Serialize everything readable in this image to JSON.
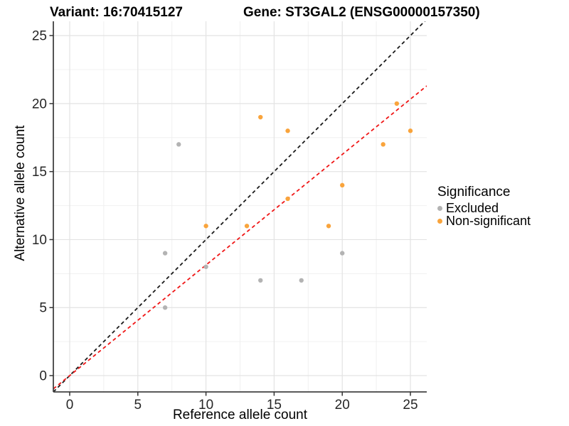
{
  "titles": {
    "variant": "Variant: 16:70415127",
    "gene": "Gene: ST3GAL2 (ENSG00000157350)"
  },
  "chart_data": {
    "type": "scatter",
    "xlabel": "Reference allele count",
    "ylabel": "Alternative allele count",
    "xlim": [
      -1.2,
      26.2
    ],
    "ylim": [
      -1.2,
      26.05
    ],
    "x_ticks": [
      0,
      5,
      10,
      15,
      20,
      25
    ],
    "y_ticks": [
      0,
      5,
      10,
      15,
      20,
      25
    ],
    "x_minor_ticks": [
      2.5,
      7.5,
      12.5,
      17.5,
      22.5
    ],
    "y_minor_ticks": [
      2.5,
      7.5,
      12.5,
      17.5,
      22.5
    ],
    "grid": "major+minor",
    "legend": {
      "title": "Significance",
      "position": "right",
      "items": [
        {
          "label": "Excluded",
          "color": "#B3B3B3"
        },
        {
          "label": "Non-significant",
          "color": "#F9A43C"
        }
      ]
    },
    "series": [
      {
        "name": "Excluded",
        "color": "#B3B3B3",
        "points": [
          [
            7,
            5
          ],
          [
            7,
            9
          ],
          [
            8,
            17
          ],
          [
            10,
            8
          ],
          [
            14,
            7
          ],
          [
            17,
            7
          ],
          [
            20,
            9
          ]
        ]
      },
      {
        "name": "Non-significant",
        "color": "#F9A43C",
        "points": [
          [
            10,
            11
          ],
          [
            13,
            11
          ],
          [
            14,
            19
          ],
          [
            16,
            13
          ],
          [
            16,
            18
          ],
          [
            19,
            11
          ],
          [
            20,
            14
          ],
          [
            23,
            17
          ],
          [
            24,
            20
          ],
          [
            25,
            18
          ]
        ]
      }
    ],
    "lines": [
      {
        "name": "identity",
        "style": "dashed",
        "color": "#1A1A1A",
        "slope": 1,
        "intercept": 0
      },
      {
        "name": "regression",
        "style": "dashed",
        "color": "#F01616",
        "slope": 0.813,
        "intercept": 0
      }
    ],
    "colors": {
      "grid_major": "#E3E3E3",
      "grid_minor": "#F0F0F0",
      "axis_line": "#424242",
      "tick_mark": "#333333",
      "tick_label": "#262626"
    }
  }
}
